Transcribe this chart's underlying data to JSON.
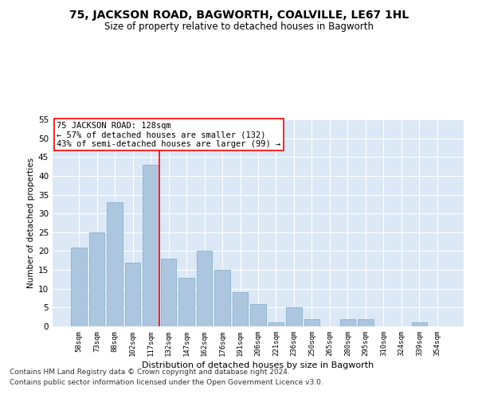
{
  "title": "75, JACKSON ROAD, BAGWORTH, COALVILLE, LE67 1HL",
  "subtitle": "Size of property relative to detached houses in Bagworth",
  "xlabel": "Distribution of detached houses by size in Bagworth",
  "ylabel": "Number of detached properties",
  "bar_color": "#adc6e0",
  "bar_edge_color": "#7aaac8",
  "background_color": "#dce8f5",
  "grid_color": "#ffffff",
  "categories": [
    "58sqm",
    "73sqm",
    "88sqm",
    "102sqm",
    "117sqm",
    "132sqm",
    "147sqm",
    "162sqm",
    "176sqm",
    "191sqm",
    "206sqm",
    "221sqm",
    "236sqm",
    "250sqm",
    "265sqm",
    "280sqm",
    "295sqm",
    "310sqm",
    "324sqm",
    "339sqm",
    "354sqm"
  ],
  "values": [
    21,
    25,
    33,
    17,
    43,
    18,
    13,
    20,
    15,
    9,
    6,
    1,
    5,
    2,
    0,
    2,
    2,
    0,
    0,
    1,
    0
  ],
  "ylim": [
    0,
    55
  ],
  "yticks": [
    0,
    5,
    10,
    15,
    20,
    25,
    30,
    35,
    40,
    45,
    50,
    55
  ],
  "property_line_idx": 5,
  "annotation_title": "75 JACKSON ROAD: 128sqm",
  "annotation_line1": "← 57% of detached houses are smaller (132)",
  "annotation_line2": "43% of semi-detached houses are larger (99) →",
  "footer_line1": "Contains HM Land Registry data © Crown copyright and database right 2024.",
  "footer_line2": "Contains public sector information licensed under the Open Government Licence v3.0.",
  "title_fontsize": 10,
  "subtitle_fontsize": 8.5,
  "ylabel_fontsize": 7.5,
  "xlabel_fontsize": 8,
  "annotation_fontsize": 7.5,
  "xtick_fontsize": 6.5,
  "ytick_fontsize": 7.5,
  "footer_fontsize": 6.5
}
